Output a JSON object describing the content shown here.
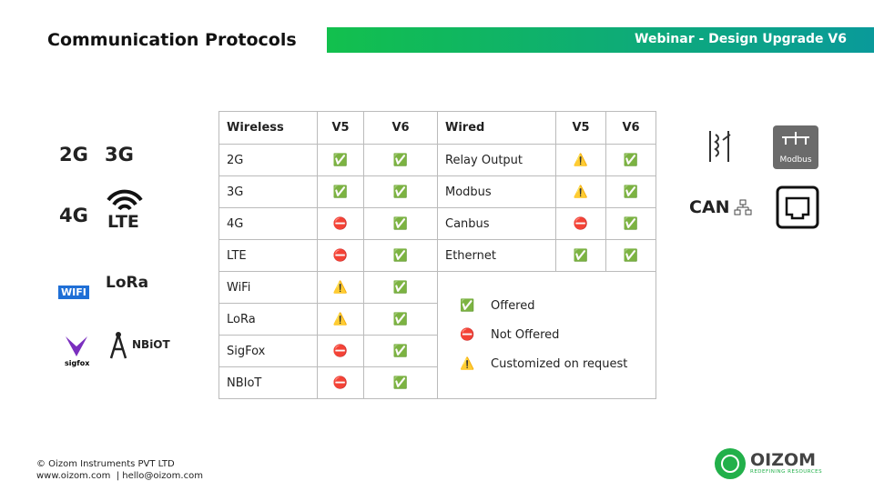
{
  "header": {
    "title": "Communication Protocols",
    "banner": "Webinar - Design Upgrade V6"
  },
  "table": {
    "headers": [
      "Wireless",
      "V5",
      "V6",
      "Wired",
      "V5",
      "V6"
    ],
    "wireless_rows": [
      [
        "2G",
        "✅",
        "✅"
      ],
      [
        "3G",
        "✅",
        "✅"
      ],
      [
        "4G",
        "⛔",
        "✅"
      ],
      [
        "LTE",
        "⛔",
        "✅"
      ],
      [
        "WiFi",
        "⚠️",
        "✅"
      ],
      [
        "LoRa",
        "⚠️",
        "✅"
      ],
      [
        "SigFox",
        "⛔",
        "✅"
      ],
      [
        "NBIoT",
        "⛔",
        "✅"
      ]
    ],
    "wired_rows": [
      [
        "Relay Output",
        "⚠️",
        "✅"
      ],
      [
        "Modbus",
        "⚠️",
        "✅"
      ],
      [
        "Canbus",
        "⛔",
        "✅"
      ],
      [
        "Ethernet",
        "✅",
        "✅"
      ]
    ],
    "legend": [
      [
        "✅",
        "Offered"
      ],
      [
        "⛔",
        "Not Offered"
      ],
      [
        "⚠️",
        "Customized on request"
      ]
    ]
  },
  "icons": {
    "g2": "2G",
    "g3": "3G",
    "g4": "4G",
    "lte": "LTE",
    "wifi": "WIFI",
    "lora": "LoRa",
    "sigfox": "sigfox",
    "nbiot": "NBiOT",
    "can": "CAN",
    "modbus": "Modbus"
  },
  "footer": {
    "company": "© Oizom Instruments PVT LTD",
    "contact": "www.oizom.com  | hello@oizom.com",
    "logo": "OIZOM",
    "tagline": "REDEFINING RESOURCES"
  }
}
